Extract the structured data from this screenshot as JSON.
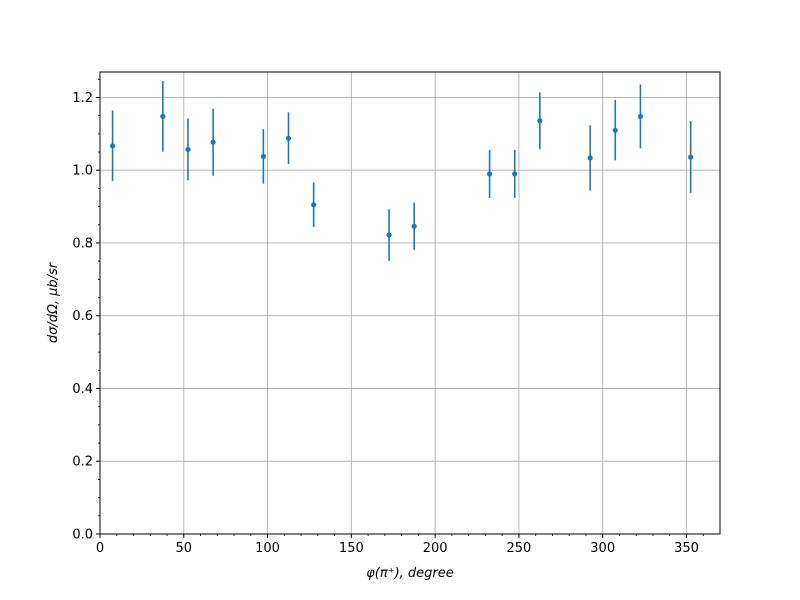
{
  "chart_data": {
    "type": "scatter",
    "title": "",
    "xlabel": "φ(π⁺), degree",
    "ylabel": "dσ/dΩ, μb/sr",
    "xlim": [
      0,
      370
    ],
    "ylim": [
      0,
      1.27
    ],
    "xticks": [
      0,
      50,
      100,
      150,
      200,
      250,
      300,
      350
    ],
    "yticks": [
      0.0,
      0.2,
      0.4,
      0.6,
      0.8,
      1.0,
      1.2
    ],
    "xtick_labels": [
      "0",
      "50",
      "100",
      "150",
      "200",
      "250",
      "300",
      "350"
    ],
    "ytick_labels": [
      "0.0",
      "0.2",
      "0.4",
      "0.6",
      "0.8",
      "1.0",
      "1.2"
    ],
    "grid": true,
    "color": "#1f77b4",
    "series": [
      {
        "x": [
          7.5,
          37.5,
          52.5,
          67.5,
          97.5,
          112.5,
          127.5,
          172.5,
          187.5,
          232.5,
          247.5,
          262.5,
          292.5,
          307.5,
          322.5,
          352.5
        ],
        "y": [
          1.067,
          1.148,
          1.057,
          1.077,
          1.038,
          1.088,
          0.905,
          0.822,
          0.846,
          0.99,
          0.99,
          1.136,
          1.034,
          1.11,
          1.148,
          1.036
        ],
        "yerr": [
          0.097,
          0.097,
          0.085,
          0.092,
          0.075,
          0.071,
          0.061,
          0.071,
          0.065,
          0.066,
          0.066,
          0.078,
          0.09,
          0.083,
          0.088,
          0.099
        ]
      }
    ]
  }
}
